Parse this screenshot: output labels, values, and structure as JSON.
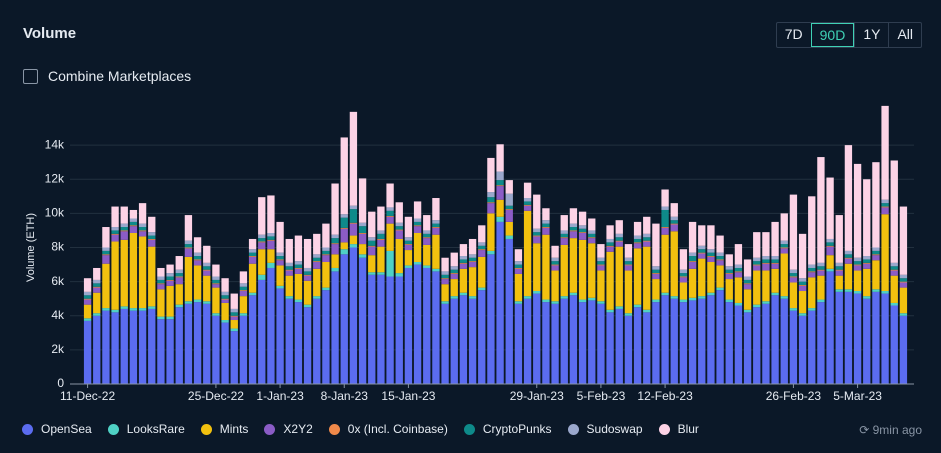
{
  "header": {
    "title": "Volume",
    "ranges": [
      "7D",
      "90D",
      "1Y",
      "All"
    ],
    "active_range": 1,
    "checkbox_label": "Combine Marketplaces"
  },
  "footer": {
    "updated": "9min ago"
  },
  "chart_data": {
    "type": "stacked_bar",
    "y_label": "Volume (ETH)",
    "categories": [
      "11-Dec-22",
      null,
      null,
      null,
      null,
      null,
      null,
      null,
      null,
      null,
      null,
      null,
      null,
      null,
      "25-Dec-22",
      null,
      null,
      null,
      null,
      null,
      null,
      "1-Jan-23",
      null,
      null,
      null,
      null,
      null,
      null,
      "8-Jan-23",
      null,
      null,
      null,
      null,
      null,
      null,
      "15-Jan-23",
      null,
      null,
      null,
      null,
      null,
      null,
      null,
      null,
      null,
      null,
      null,
      null,
      null,
      "29-Jan-23",
      null,
      null,
      null,
      null,
      null,
      null,
      "5-Feb-23",
      null,
      null,
      null,
      null,
      null,
      null,
      "12-Feb-23",
      null,
      null,
      null,
      null,
      null,
      null,
      null,
      null,
      null,
      null,
      null,
      null,
      null,
      "26-Feb-23",
      null,
      null,
      null,
      null,
      null,
      null,
      "5-Mar-23",
      null,
      null,
      null,
      null,
      null
    ],
    "ylim": [
      0,
      16000
    ],
    "yticks": [
      0,
      {
        "value": 2000,
        "label": "2k"
      },
      {
        "value": 4000,
        "label": "4k"
      },
      {
        "value": 6000,
        "label": "6k"
      },
      {
        "value": 8000,
        "label": "8k"
      },
      {
        "value": 10000,
        "label": "10k"
      },
      {
        "value": 12000,
        "label": "12k"
      },
      {
        "value": 14000,
        "label": "14k"
      }
    ],
    "grid": true,
    "series": [
      {
        "name": "OpenSea",
        "color": "#5b6cf0",
        "values": [
          3700,
          4000,
          4300,
          4200,
          4400,
          4300,
          4300,
          4400,
          3800,
          3800,
          4500,
          4700,
          4800,
          4700,
          4000,
          3600,
          3100,
          4000,
          5200,
          6100,
          6800,
          5600,
          5000,
          4800,
          4500,
          5000,
          5500,
          6600,
          7600,
          8000,
          7400,
          6400,
          6400,
          6300,
          6300,
          6800,
          7000,
          6800,
          6600,
          4700,
          5000,
          5200,
          5000,
          5500,
          7600,
          9500,
          8500,
          4700,
          5000,
          5300,
          4800,
          4700,
          5000,
          5200,
          4800,
          4900,
          4700,
          4200,
          4400,
          4000,
          4500,
          4200,
          4800,
          5200,
          5000,
          4800,
          4900,
          5000,
          5200,
          5500,
          4800,
          4600,
          4200,
          4500,
          4700,
          5200,
          5000,
          4300,
          4000,
          4300,
          4800,
          6600,
          5400,
          5400,
          5300,
          5000,
          5400,
          5300,
          4600,
          4000
        ]
      },
      {
        "name": "LooksRare",
        "color": "#4fd1c5",
        "values": [
          150,
          150,
          150,
          150,
          150,
          150,
          150,
          150,
          150,
          150,
          150,
          150,
          150,
          150,
          150,
          150,
          150,
          150,
          150,
          300,
          300,
          150,
          150,
          150,
          150,
          150,
          150,
          200,
          300,
          200,
          200,
          150,
          150,
          1500,
          200,
          150,
          150,
          150,
          150,
          150,
          150,
          150,
          150,
          150,
          200,
          300,
          200,
          150,
          150,
          150,
          150,
          150,
          150,
          150,
          150,
          150,
          150,
          150,
          150,
          150,
          150,
          150,
          150,
          150,
          150,
          150,
          150,
          150,
          150,
          150,
          150,
          150,
          150,
          150,
          150,
          150,
          150,
          150,
          150,
          150,
          150,
          150,
          150,
          150,
          150,
          150,
          150,
          150,
          150,
          150
        ]
      },
      {
        "name": "Mints",
        "color": "#f2c10f",
        "values": [
          800,
          1200,
          2600,
          4000,
          3900,
          4400,
          4200,
          3500,
          1600,
          1800,
          1200,
          2600,
          2000,
          1500,
          1500,
          1000,
          500,
          1000,
          1700,
          1500,
          800,
          1200,
          1200,
          1500,
          1400,
          1600,
          1500,
          800,
          400,
          500,
          600,
          1000,
          1500,
          1600,
          2000,
          900,
          1700,
          1200,
          2000,
          1000,
          1000,
          1400,
          1700,
          1800,
          2200,
          1000,
          800,
          1600,
          5000,
          2800,
          3800,
          1800,
          3000,
          3200,
          3500,
          3200,
          1800,
          3400,
          3500,
          2500,
          3300,
          3700,
          1200,
          3400,
          3800,
          1000,
          1700,
          2200,
          1800,
          1300,
          1200,
          1500,
          1200,
          2000,
          1800,
          1400,
          2500,
          1500,
          1300,
          1800,
          1400,
          800,
          800,
          1500,
          1200,
          1600,
          1700,
          4500,
          1600,
          1500
        ]
      },
      {
        "name": "X2Y2",
        "color": "#8b5cc6",
        "values": [
          300,
          300,
          500,
          400,
          500,
          400,
          300,
          400,
          300,
          300,
          400,
          500,
          300,
          300,
          200,
          200,
          200,
          300,
          400,
          400,
          500,
          300,
          300,
          300,
          300,
          400,
          400,
          600,
          800,
          700,
          600,
          500,
          400,
          400,
          500,
          300,
          400,
          400,
          400,
          300,
          300,
          300,
          300,
          400,
          600,
          800,
          700,
          300,
          300,
          400,
          400,
          300,
          400,
          400,
          400,
          300,
          300,
          300,
          300,
          300,
          300,
          300,
          300,
          400,
          400,
          300,
          400,
          300,
          300,
          300,
          300,
          300,
          300,
          300,
          400,
          300,
          300,
          300,
          300,
          300,
          300,
          500,
          300,
          300,
          300,
          300,
          300,
          400,
          300,
          300
        ]
      },
      {
        "name": "0x (Incl. Coinbase)",
        "color": "#f0894a",
        "values": [
          50,
          50,
          50,
          50,
          50,
          50,
          50,
          50,
          50,
          50,
          50,
          50,
          50,
          50,
          50,
          50,
          50,
          50,
          50,
          50,
          50,
          50,
          50,
          50,
          50,
          50,
          50,
          50,
          50,
          50,
          50,
          50,
          50,
          50,
          50,
          50,
          50,
          50,
          50,
          50,
          50,
          50,
          50,
          50,
          50,
          50,
          50,
          50,
          50,
          50,
          50,
          50,
          50,
          50,
          50,
          50,
          50,
          50,
          50,
          50,
          50,
          50,
          50,
          50,
          50,
          50,
          50,
          50,
          50,
          50,
          50,
          50,
          50,
          50,
          50,
          50,
          50,
          50,
          50,
          50,
          50,
          50,
          50,
          50,
          50,
          50,
          50,
          50,
          50,
          50
        ]
      },
      {
        "name": "CryptoPunks",
        "color": "#0e8a8a",
        "values": [
          200,
          200,
          200,
          200,
          200,
          200,
          200,
          200,
          200,
          200,
          200,
          200,
          200,
          200,
          200,
          200,
          200,
          200,
          200,
          200,
          200,
          200,
          200,
          200,
          200,
          200,
          200,
          300,
          600,
          800,
          400,
          300,
          300,
          300,
          200,
          200,
          200,
          200,
          200,
          200,
          200,
          200,
          200,
          200,
          300,
          300,
          200,
          200,
          200,
          200,
          200,
          200,
          200,
          200,
          200,
          200,
          200,
          200,
          200,
          200,
          200,
          200,
          200,
          1000,
          200,
          200,
          300,
          200,
          200,
          200,
          200,
          200,
          200,
          200,
          200,
          200,
          200,
          200,
          200,
          200,
          200,
          200,
          200,
          200,
          200,
          200,
          200,
          200,
          200,
          200
        ]
      },
      {
        "name": "Sudoswap",
        "color": "#9aa7cc",
        "values": [
          200,
          200,
          200,
          200,
          200,
          200,
          200,
          200,
          200,
          200,
          200,
          200,
          200,
          200,
          200,
          200,
          200,
          200,
          200,
          200,
          200,
          200,
          200,
          200,
          200,
          200,
          200,
          200,
          200,
          200,
          200,
          200,
          200,
          200,
          200,
          200,
          200,
          200,
          200,
          200,
          200,
          200,
          200,
          200,
          300,
          500,
          700,
          200,
          200,
          200,
          200,
          200,
          200,
          200,
          200,
          200,
          200,
          200,
          200,
          200,
          200,
          200,
          200,
          200,
          200,
          200,
          200,
          200,
          200,
          200,
          200,
          200,
          200,
          200,
          200,
          200,
          200,
          200,
          200,
          200,
          200,
          200,
          200,
          200,
          200,
          200,
          200,
          200,
          200,
          200
        ]
      },
      {
        "name": "Blur",
        "color": "#fdd3e6",
        "values": [
          800,
          700,
          1200,
          1200,
          1000,
          500,
          1200,
          900,
          500,
          500,
          800,
          1500,
          900,
          1000,
          700,
          800,
          900,
          700,
          600,
          2200,
          2200,
          1800,
          1400,
          1500,
          1700,
          1200,
          1400,
          3000,
          4500,
          5500,
          2600,
          1500,
          1400,
          1400,
          1200,
          1200,
          1000,
          900,
          1300,
          800,
          800,
          700,
          900,
          1000,
          2000,
          1600,
          800,
          700,
          900,
          2000,
          700,
          700,
          900,
          900,
          800,
          700,
          800,
          800,
          800,
          800,
          800,
          1000,
          2500,
          1000,
          800,
          1200,
          1800,
          1200,
          1400,
          1000,
          700,
          1200,
          1000,
          1500,
          1400,
          2000,
          1600,
          4400,
          2600,
          4000,
          6200,
          3600,
          2800,
          6200,
          5500,
          4500,
          5000,
          5500,
          6000,
          4000
        ]
      }
    ]
  }
}
